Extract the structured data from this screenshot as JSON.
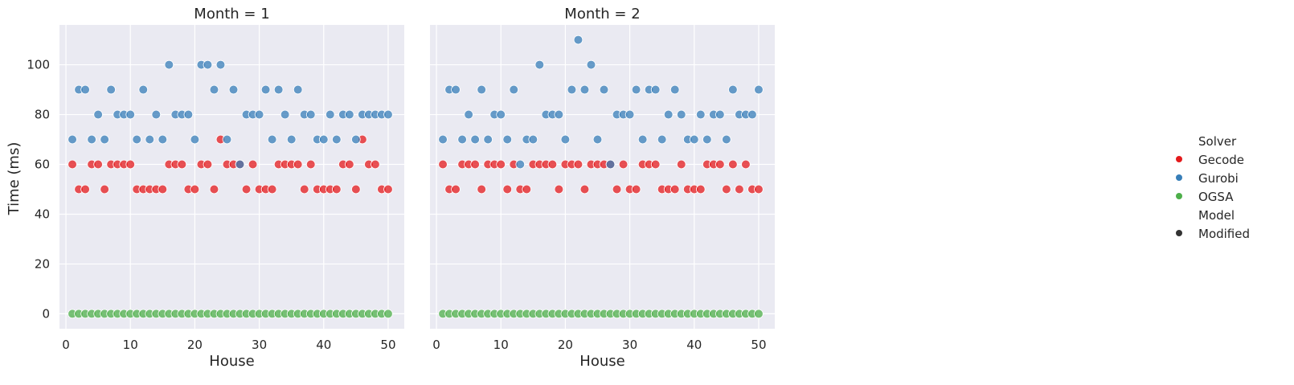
{
  "chart_data": {
    "type": "scatter",
    "xlabel": "House",
    "ylabel": "Time (ms)",
    "xlim": [
      -1,
      52.5
    ],
    "ylim": [
      -6,
      116
    ],
    "xticks": [
      "0",
      "10",
      "20",
      "30",
      "40",
      "50"
    ],
    "yticks": [
      "0",
      "20",
      "40",
      "60",
      "80",
      "100"
    ],
    "grid": true,
    "legend_position": "right",
    "legend": {
      "solver_title": "Solver",
      "solvers": [
        {
          "name": "Gecode",
          "color": "#e41a1c"
        },
        {
          "name": "Gurobi",
          "color": "#377eb8"
        },
        {
          "name": "OGSA",
          "color": "#4daf4a"
        }
      ],
      "model_title": "Model",
      "models": [
        {
          "name": "Modified",
          "color": "#333333"
        }
      ]
    },
    "panels": [
      {
        "title": "Month = 1",
        "series": [
          {
            "name": "Gecode",
            "color": "#e41a1c",
            "x": [
              1,
              2,
              3,
              4,
              5,
              6,
              7,
              8,
              9,
              10,
              11,
              12,
              13,
              14,
              15,
              16,
              17,
              18,
              19,
              20,
              21,
              22,
              23,
              24,
              25,
              26,
              27,
              28,
              29,
              30,
              31,
              32,
              33,
              34,
              35,
              36,
              37,
              38,
              39,
              40,
              41,
              42,
              43,
              44,
              45,
              46,
              47,
              48,
              49,
              50
            ],
            "y": [
              60,
              50,
              50,
              60,
              60,
              50,
              60,
              60,
              60,
              60,
              50,
              50,
              50,
              50,
              50,
              60,
              60,
              60,
              50,
              50,
              60,
              60,
              50,
              70,
              60,
              60,
              60,
              50,
              60,
              50,
              50,
              50,
              60,
              60,
              60,
              60,
              50,
              60,
              50,
              50,
              50,
              50,
              60,
              60,
              50,
              70,
              60,
              60,
              50,
              50
            ]
          },
          {
            "name": "Gurobi",
            "color": "#377eb8",
            "x": [
              1,
              2,
              3,
              4,
              5,
              6,
              7,
              8,
              9,
              10,
              11,
              12,
              13,
              14,
              15,
              16,
              17,
              18,
              19,
              20,
              21,
              22,
              23,
              24,
              25,
              26,
              27,
              28,
              29,
              30,
              31,
              32,
              33,
              34,
              35,
              36,
              37,
              38,
              39,
              40,
              41,
              42,
              43,
              44,
              45,
              46,
              47,
              48,
              49,
              50
            ],
            "y": [
              70,
              90,
              90,
              70,
              80,
              70,
              90,
              80,
              80,
              80,
              70,
              90,
              70,
              80,
              70,
              100,
              80,
              80,
              80,
              70,
              100,
              100,
              90,
              100,
              70,
              90,
              60,
              80,
              80,
              80,
              90,
              70,
              90,
              80,
              70,
              90,
              80,
              80,
              70,
              70,
              80,
              70,
              80,
              80,
              70,
              80,
              80,
              80,
              80,
              80
            ]
          },
          {
            "name": "OGSA",
            "color": "#4daf4a",
            "x": [
              1,
              2,
              3,
              4,
              5,
              6,
              7,
              8,
              9,
              10,
              11,
              12,
              13,
              14,
              15,
              16,
              17,
              18,
              19,
              20,
              21,
              22,
              23,
              24,
              25,
              26,
              27,
              28,
              29,
              30,
              31,
              32,
              33,
              34,
              35,
              36,
              37,
              38,
              39,
              40,
              41,
              42,
              43,
              44,
              45,
              46,
              47,
              48,
              49,
              50
            ],
            "y": [
              0,
              0,
              0,
              0,
              0,
              0,
              0,
              0,
              0,
              0,
              0,
              0,
              0,
              0,
              0,
              0,
              0,
              0,
              0,
              0,
              0,
              0,
              0,
              0,
              0,
              0,
              0,
              0,
              0,
              0,
              0,
              0,
              0,
              0,
              0,
              0,
              0,
              0,
              0,
              0,
              0,
              0,
              0,
              0,
              0,
              0,
              0,
              0,
              0,
              0
            ]
          }
        ]
      },
      {
        "title": "Month = 2",
        "series": [
          {
            "name": "Gecode",
            "color": "#e41a1c",
            "x": [
              1,
              2,
              3,
              4,
              5,
              6,
              7,
              8,
              9,
              10,
              11,
              12,
              13,
              14,
              15,
              16,
              17,
              18,
              19,
              20,
              21,
              22,
              23,
              24,
              25,
              26,
              27,
              28,
              29,
              30,
              31,
              32,
              33,
              34,
              35,
              36,
              37,
              38,
              39,
              40,
              41,
              42,
              43,
              44,
              45,
              46,
              47,
              48,
              49,
              50
            ],
            "y": [
              60,
              50,
              50,
              60,
              60,
              60,
              50,
              60,
              60,
              60,
              50,
              60,
              50,
              50,
              60,
              60,
              60,
              60,
              50,
              60,
              60,
              60,
              50,
              60,
              60,
              60,
              60,
              50,
              60,
              50,
              50,
              60,
              60,
              60,
              50,
              50,
              50,
              60,
              50,
              50,
              50,
              60,
              60,
              60,
              50,
              60,
              50,
              60,
              50,
              50
            ]
          },
          {
            "name": "Gurobi",
            "color": "#377eb8",
            "x": [
              1,
              2,
              3,
              4,
              5,
              6,
              7,
              8,
              9,
              10,
              11,
              12,
              13,
              14,
              15,
              16,
              17,
              18,
              19,
              20,
              21,
              22,
              23,
              24,
              25,
              26,
              27,
              28,
              29,
              30,
              31,
              32,
              33,
              34,
              35,
              36,
              37,
              38,
              39,
              40,
              41,
              42,
              43,
              44,
              45,
              46,
              47,
              48,
              49,
              50
            ],
            "y": [
              70,
              90,
              90,
              70,
              80,
              70,
              90,
              70,
              80,
              80,
              70,
              90,
              60,
              70,
              70,
              100,
              80,
              80,
              80,
              70,
              90,
              110,
              90,
              100,
              70,
              90,
              60,
              80,
              80,
              80,
              90,
              70,
              90,
              90,
              70,
              80,
              90,
              80,
              70,
              70,
              80,
              70,
              80,
              80,
              70,
              90,
              80,
              80,
              80,
              90
            ]
          },
          {
            "name": "OGSA",
            "color": "#4daf4a",
            "x": [
              1,
              2,
              3,
              4,
              5,
              6,
              7,
              8,
              9,
              10,
              11,
              12,
              13,
              14,
              15,
              16,
              17,
              18,
              19,
              20,
              21,
              22,
              23,
              24,
              25,
              26,
              27,
              28,
              29,
              30,
              31,
              32,
              33,
              34,
              35,
              36,
              37,
              38,
              39,
              40,
              41,
              42,
              43,
              44,
              45,
              46,
              47,
              48,
              49,
              50
            ],
            "y": [
              0,
              0,
              0,
              0,
              0,
              0,
              0,
              0,
              0,
              0,
              0,
              0,
              0,
              0,
              0,
              0,
              0,
              0,
              0,
              0,
              0,
              0,
              0,
              0,
              0,
              0,
              0,
              0,
              0,
              0,
              0,
              0,
              0,
              0,
              0,
              0,
              0,
              0,
              0,
              0,
              0,
              0,
              0,
              0,
              0,
              0,
              0,
              0,
              0,
              0
            ]
          }
        ]
      }
    ]
  }
}
